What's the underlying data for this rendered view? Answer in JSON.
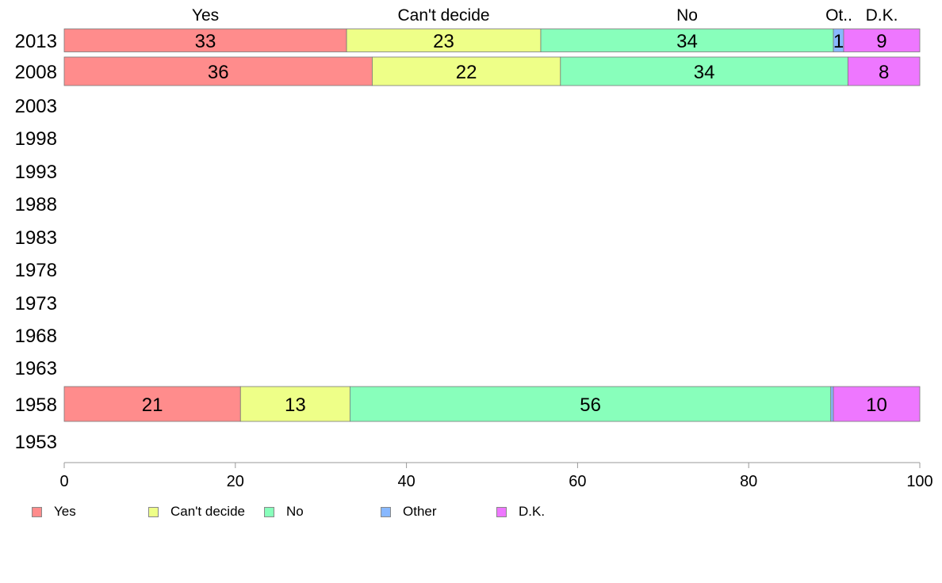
{
  "chart_data": {
    "type": "bar",
    "orientation": "horizontal",
    "stacked": true,
    "categories": [
      "2013",
      "2008",
      "2003",
      "1998",
      "1993",
      "1988",
      "1983",
      "1978",
      "1973",
      "1968",
      "1963",
      "1958",
      "1953"
    ],
    "series": [
      {
        "name": "Yes",
        "color": "#ff8c8c",
        "values": [
          33,
          36,
          null,
          null,
          null,
          null,
          null,
          null,
          null,
          null,
          null,
          20.6,
          null
        ],
        "labels": [
          "33",
          "36",
          "",
          "",
          "",
          "",
          "",
          "",
          "",
          "",
          "",
          "21",
          ""
        ]
      },
      {
        "name": "Can't decide",
        "color": "#eeff88",
        "values": [
          22.7,
          22,
          null,
          null,
          null,
          null,
          null,
          null,
          null,
          null,
          null,
          12.8,
          null
        ],
        "labels": [
          "23",
          "22",
          "",
          "",
          "",
          "",
          "",
          "",
          "",
          "",
          "",
          "13",
          ""
        ]
      },
      {
        "name": "No",
        "color": "#88ffbb",
        "values": [
          34.2,
          33.6,
          null,
          null,
          null,
          null,
          null,
          null,
          null,
          null,
          null,
          56.2,
          null
        ],
        "labels": [
          "34",
          "34",
          "",
          "",
          "",
          "",
          "",
          "",
          "",
          "",
          "",
          "56",
          ""
        ]
      },
      {
        "name": "Other",
        "color": "#88b8ff",
        "values": [
          1.2,
          0,
          null,
          null,
          null,
          null,
          null,
          null,
          null,
          null,
          null,
          0.3,
          null
        ],
        "labels": [
          "1",
          "",
          "",
          "",
          "",
          "",
          "",
          "",
          "",
          "",
          "",
          "",
          ""
        ]
      },
      {
        "name": "D.K.",
        "color": "#ee77ff",
        "values": [
          8.9,
          8.4,
          null,
          null,
          null,
          null,
          null,
          null,
          null,
          null,
          null,
          10.1,
          null
        ],
        "labels": [
          "9",
          "8",
          "",
          "",
          "",
          "",
          "",
          "",
          "",
          "",
          "",
          "10",
          ""
        ]
      }
    ],
    "top_labels": [
      "Yes",
      "Can't decide",
      "No",
      "Ot..",
      "D.K."
    ],
    "xlim": [
      0,
      100
    ],
    "xticks": [
      "0",
      "20",
      "40",
      "60",
      "80",
      "100"
    ],
    "grid": false,
    "legend_position": "bottom"
  }
}
